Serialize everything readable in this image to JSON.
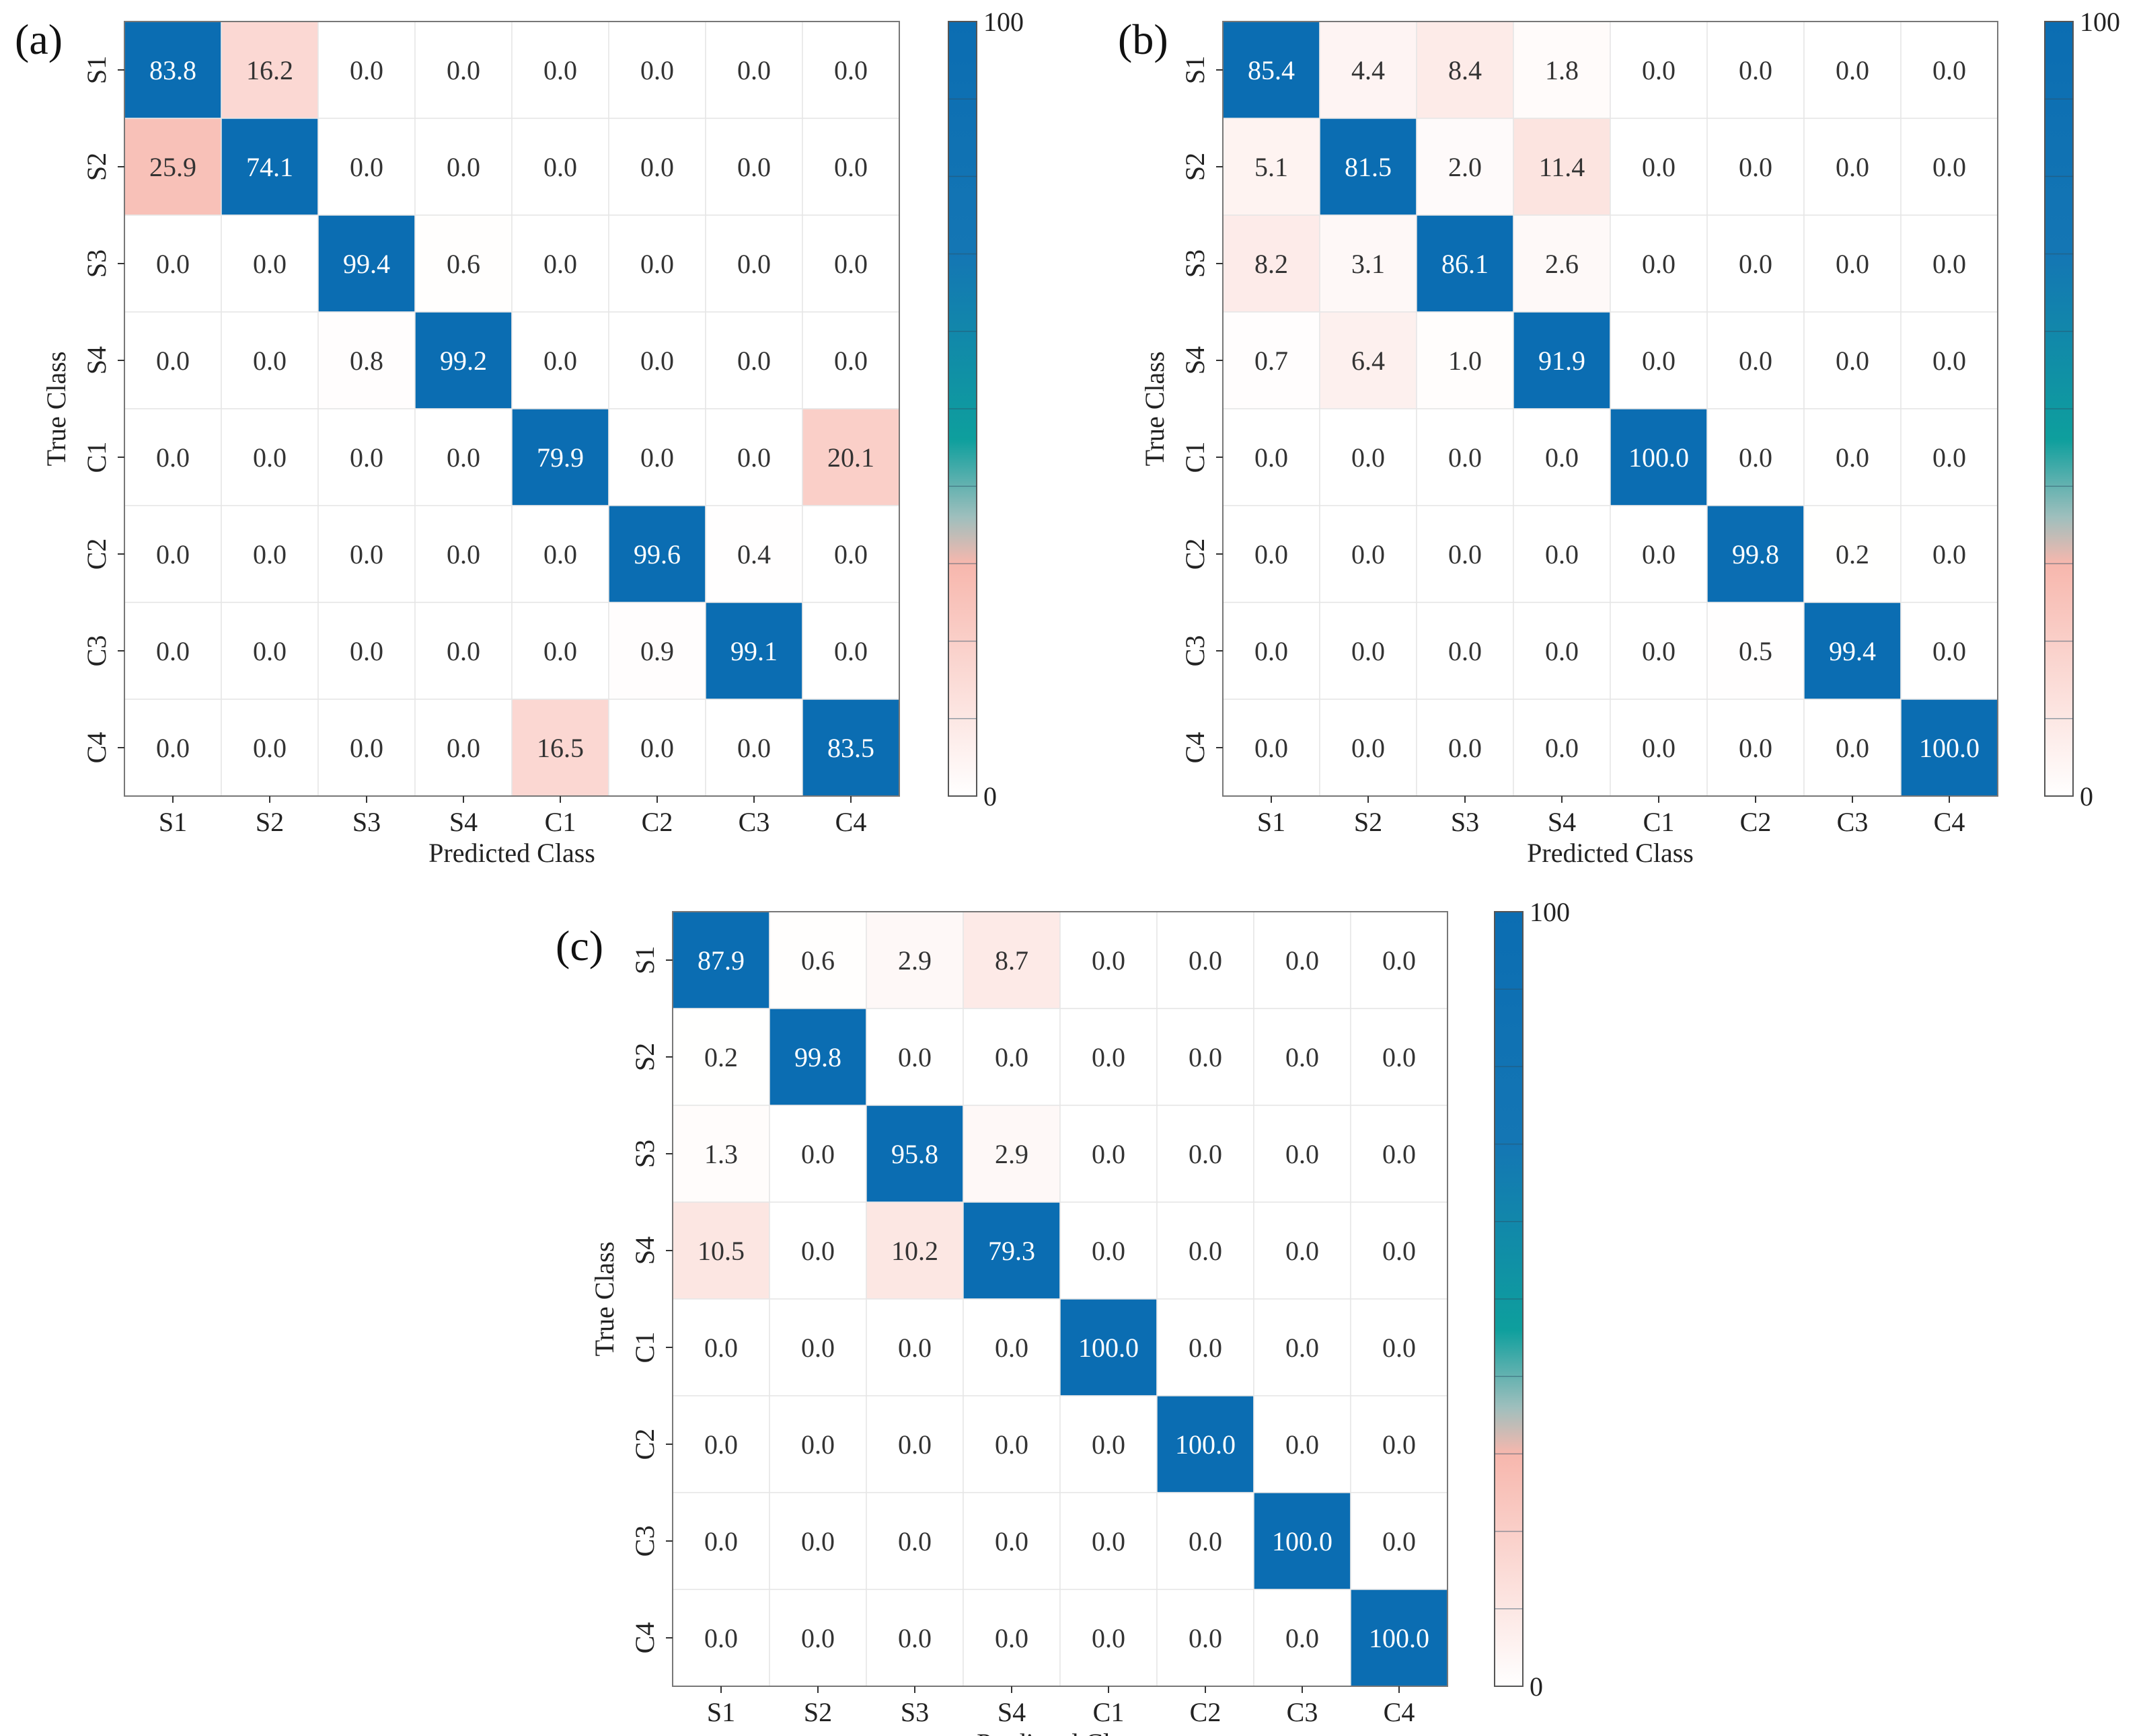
{
  "chart_data": [
    {
      "type": "heatmap",
      "panel_label": "(a)",
      "xlabel": "Predicted Class",
      "ylabel": "True Class",
      "x_categories": [
        "S1",
        "S2",
        "S3",
        "S4",
        "C1",
        "C2",
        "C3",
        "C4"
      ],
      "y_categories": [
        "S1",
        "S2",
        "S3",
        "S4",
        "C1",
        "C2",
        "C3",
        "C4"
      ],
      "values": [
        [
          83.8,
          16.2,
          0.0,
          0.0,
          0.0,
          0.0,
          0.0,
          0.0
        ],
        [
          25.9,
          74.1,
          0.0,
          0.0,
          0.0,
          0.0,
          0.0,
          0.0
        ],
        [
          0.0,
          0.0,
          99.4,
          0.6,
          0.0,
          0.0,
          0.0,
          0.0
        ],
        [
          0.0,
          0.0,
          0.8,
          99.2,
          0.0,
          0.0,
          0.0,
          0.0
        ],
        [
          0.0,
          0.0,
          0.0,
          0.0,
          79.9,
          0.0,
          0.0,
          20.1
        ],
        [
          0.0,
          0.0,
          0.0,
          0.0,
          0.0,
          99.6,
          0.4,
          0.0
        ],
        [
          0.0,
          0.0,
          0.0,
          0.0,
          0.0,
          0.9,
          99.1,
          0.0
        ],
        [
          0.0,
          0.0,
          0.0,
          0.0,
          16.5,
          0.0,
          0.0,
          83.5
        ]
      ],
      "colorbar": {
        "min": 0,
        "max": 100,
        "min_label": "0",
        "max_label": "100"
      }
    },
    {
      "type": "heatmap",
      "panel_label": "(b)",
      "xlabel": "Predicted Class",
      "ylabel": "True Class",
      "x_categories": [
        "S1",
        "S2",
        "S3",
        "S4",
        "C1",
        "C2",
        "C3",
        "C4"
      ],
      "y_categories": [
        "S1",
        "S2",
        "S3",
        "S4",
        "C1",
        "C2",
        "C3",
        "C4"
      ],
      "values": [
        [
          85.4,
          4.4,
          8.4,
          1.8,
          0.0,
          0.0,
          0.0,
          0.0
        ],
        [
          5.1,
          81.5,
          2.0,
          11.4,
          0.0,
          0.0,
          0.0,
          0.0
        ],
        [
          8.2,
          3.1,
          86.1,
          2.6,
          0.0,
          0.0,
          0.0,
          0.0
        ],
        [
          0.7,
          6.4,
          1.0,
          91.9,
          0.0,
          0.0,
          0.0,
          0.0
        ],
        [
          0.0,
          0.0,
          0.0,
          0.0,
          100.0,
          0.0,
          0.0,
          0.0
        ],
        [
          0.0,
          0.0,
          0.0,
          0.0,
          0.0,
          99.8,
          0.2,
          0.0
        ],
        [
          0.0,
          0.0,
          0.0,
          0.0,
          0.0,
          0.5,
          99.4,
          0.0
        ],
        [
          0.0,
          0.0,
          0.0,
          0.0,
          0.0,
          0.0,
          0.0,
          100.0
        ]
      ],
      "colorbar": {
        "min": 0,
        "max": 100,
        "min_label": "0",
        "max_label": "100"
      }
    },
    {
      "type": "heatmap",
      "panel_label": "(c)",
      "xlabel": "Predicted Class",
      "ylabel": "True Class",
      "x_categories": [
        "S1",
        "S2",
        "S3",
        "S4",
        "C1",
        "C2",
        "C3",
        "C4"
      ],
      "y_categories": [
        "S1",
        "S2",
        "S3",
        "S4",
        "C1",
        "C2",
        "C3",
        "C4"
      ],
      "values": [
        [
          87.9,
          0.6,
          2.9,
          8.7,
          0.0,
          0.0,
          0.0,
          0.0
        ],
        [
          0.2,
          99.8,
          0.0,
          0.0,
          0.0,
          0.0,
          0.0,
          0.0
        ],
        [
          1.3,
          0.0,
          95.8,
          2.9,
          0.0,
          0.0,
          0.0,
          0.0
        ],
        [
          10.5,
          0.0,
          10.2,
          79.3,
          0.0,
          0.0,
          0.0,
          0.0
        ],
        [
          0.0,
          0.0,
          0.0,
          0.0,
          100.0,
          0.0,
          0.0,
          0.0
        ],
        [
          0.0,
          0.0,
          0.0,
          0.0,
          0.0,
          100.0,
          0.0,
          0.0
        ],
        [
          0.0,
          0.0,
          0.0,
          0.0,
          0.0,
          0.0,
          100.0,
          0.0
        ],
        [
          0.0,
          0.0,
          0.0,
          0.0,
          0.0,
          0.0,
          0.0,
          100.0
        ]
      ],
      "colorbar": {
        "min": 0,
        "max": 100,
        "min_label": "0",
        "max_label": "100"
      }
    }
  ],
  "colors": {
    "colormap": [
      "#ffffff",
      "#f7b7ad",
      "#0e9f9d",
      "#1476b4",
      "#0b6db2"
    ],
    "text_dark": "#333333",
    "text_light": "#ffffff",
    "grid": "#e6e6e6",
    "frame": "#777777"
  }
}
